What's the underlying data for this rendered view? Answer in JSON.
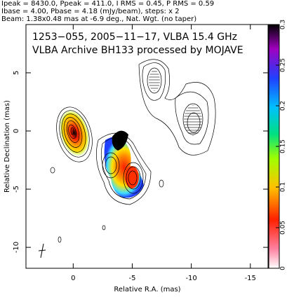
{
  "header": {
    "lines": [
      "Ipeak = 8430.0, Ppeak = 411.0, I RMS = 0.45, P RMS = 0.59",
      "Ibase = 4.00, Pbase = 4.18 (mJy/beam), steps: x 2",
      "Beam: 1.38x0.48 mas at -6.9 deg., Nat. Wgt. (no taper)"
    ]
  },
  "chart_data": {
    "type": "contour",
    "title": "1253−055, 2005−11−17, VLBA 15.4 GHz",
    "subtitle": "VLBA Archive BH133 processed by MOJAVE",
    "x_label": "Relative R.A. (mas)",
    "y_label": "Relative Declination (mas)",
    "xlim": [
      4,
      -16.5
    ],
    "ylim": [
      -11.8,
      9.15
    ],
    "xticks": [
      0,
      -5,
      -10,
      -15
    ],
    "yticks": [
      5,
      0,
      -5,
      -10
    ],
    "colorbar": {
      "lim": [
        0,
        0.3
      ],
      "ticks": [
        0,
        0.05,
        0.1,
        0.15,
        0.2,
        0.25,
        0.3
      ]
    }
  }
}
